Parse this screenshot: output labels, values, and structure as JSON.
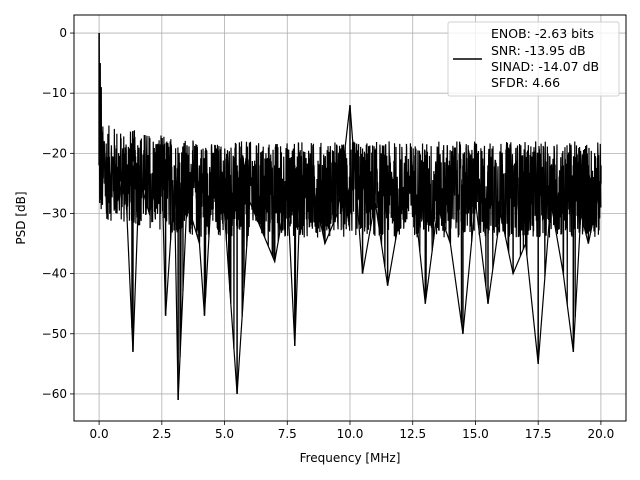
{
  "chart_data": {
    "type": "line",
    "title": "",
    "xlabel": "Frequency [MHz]",
    "ylabel": "PSD [dB]",
    "xlim": [
      -1.0,
      21.0
    ],
    "ylim": [
      -64.5,
      3.0
    ],
    "xticks": [
      0.0,
      2.5,
      5.0,
      7.5,
      10.0,
      12.5,
      15.0,
      17.5,
      20.0
    ],
    "xtick_labels": [
      "0.0",
      "2.5",
      "5.0",
      "7.5",
      "10.0",
      "12.5",
      "15.0",
      "17.5",
      "20.0"
    ],
    "yticks": [
      0,
      -10,
      -20,
      -30,
      -40,
      -50,
      -60
    ],
    "ytick_labels": [
      "0",
      "−10",
      "−20",
      "−30",
      "−40",
      "−50",
      "−60"
    ],
    "grid": true,
    "legend_position": "top-right",
    "legend_lines": [
      "ENOB: -2.63 bits",
      "SNR: -13.95 dB",
      "SINAD: -14.07 dB",
      "SFDR: 4.66"
    ],
    "line_color": "#000000",
    "series": [
      {
        "x": [
          0,
          0.02,
          0.04,
          0.06,
          0.08,
          0.1,
          0.15,
          0.2,
          0.3,
          0.5,
          0.8,
          1.0,
          1.35,
          1.6,
          2.0,
          2.5,
          2.65,
          3.0,
          3.15,
          3.5,
          4.0,
          4.2,
          4.5,
          5.0,
          5.5,
          6.0,
          6.5,
          7.0,
          7.5,
          7.8,
          8.0,
          8.5,
          9.0,
          9.5,
          10.0,
          10.5,
          11.0,
          11.5,
          12.0,
          12.5,
          13.0,
          13.5,
          14.0,
          14.5,
          15.0,
          15.5,
          16.0,
          16.5,
          17.0,
          17.5,
          18.0,
          18.5,
          18.9,
          19.2,
          19.5,
          20.0
        ],
        "y": [
          0,
          -17,
          -5,
          -14,
          -9,
          -20,
          -25,
          -18,
          -30,
          -22,
          -28,
          -20,
          -53,
          -24,
          -30,
          -22,
          -47,
          -25,
          -61,
          -28,
          -35,
          -47,
          -25,
          -30,
          -60,
          -28,
          -33,
          -38,
          -26,
          -52,
          -29,
          -25,
          -35,
          -30,
          -12,
          -40,
          -28,
          -42,
          -30,
          -25,
          -45,
          -29,
          -35,
          -50,
          -28,
          -45,
          -30,
          -40,
          -35,
          -55,
          -28,
          -40,
          -53,
          -30,
          -35,
          -25
        ]
      }
    ]
  }
}
